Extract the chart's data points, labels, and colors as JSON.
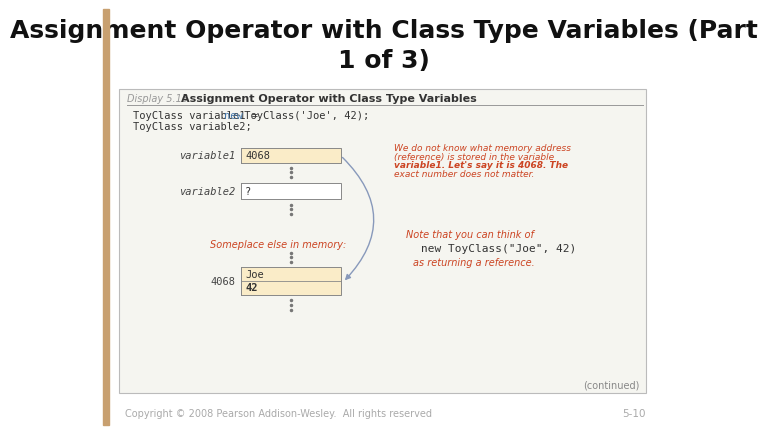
{
  "title": "Assignment Operator with Class Type Variables (Part\n1 of 3)",
  "title_fontsize": 18,
  "title_color": "#111111",
  "display_label": "Display 5.13",
  "display_title": "Assignment Operator with Class Type Variables",
  "copyright": "Copyright © 2008 Pearson Addison-Wesley.  All rights reserved",
  "page_num": "5-10",
  "code_line1": "ToyClass variable1 = new ToyClass('Joe', 42);",
  "code_line1_parts": [
    "ToyClass variable1 = ",
    "new",
    " ToyClass('Joe', 42);"
  ],
  "code_line2": "ToyClass variable2;",
  "bg_color": "#ffffff",
  "box_fill": "#faecc8",
  "box_edge": "#888888",
  "left_margin_color": "#c8a070",
  "variable1_label": "variable1",
  "variable1_value": "4068",
  "variable2_label": "variable2",
  "variable2_value": "?",
  "addr_label": "4068",
  "obj_value1": "Joe",
  "obj_value2": "42",
  "note1_lines": [
    "We do not know what memory address",
    "(reference) is stored in the variable",
    "variable1. Let's say it is 4068. The",
    "exact number does not matter."
  ],
  "note2_line1": "Note that you can think of",
  "note2_code": "new ToyClass(\"Joe\", 42)",
  "note2_line2": "as returning a reference.",
  "someplace_text": "Someplace else in memory:",
  "continued_text": "(continued)",
  "inner_bg": "#f5f5f0",
  "inner_border": "#bbbbbb",
  "header_sep_color": "#999999",
  "code_color": "#333333",
  "code_new_color": "#4477aa",
  "note_color": "#cc4422",
  "label_color": "#444444",
  "arrow_color": "#8899bb",
  "dot_color": "#777777",
  "continued_color": "#888888",
  "footer_color": "#aaaaaa"
}
